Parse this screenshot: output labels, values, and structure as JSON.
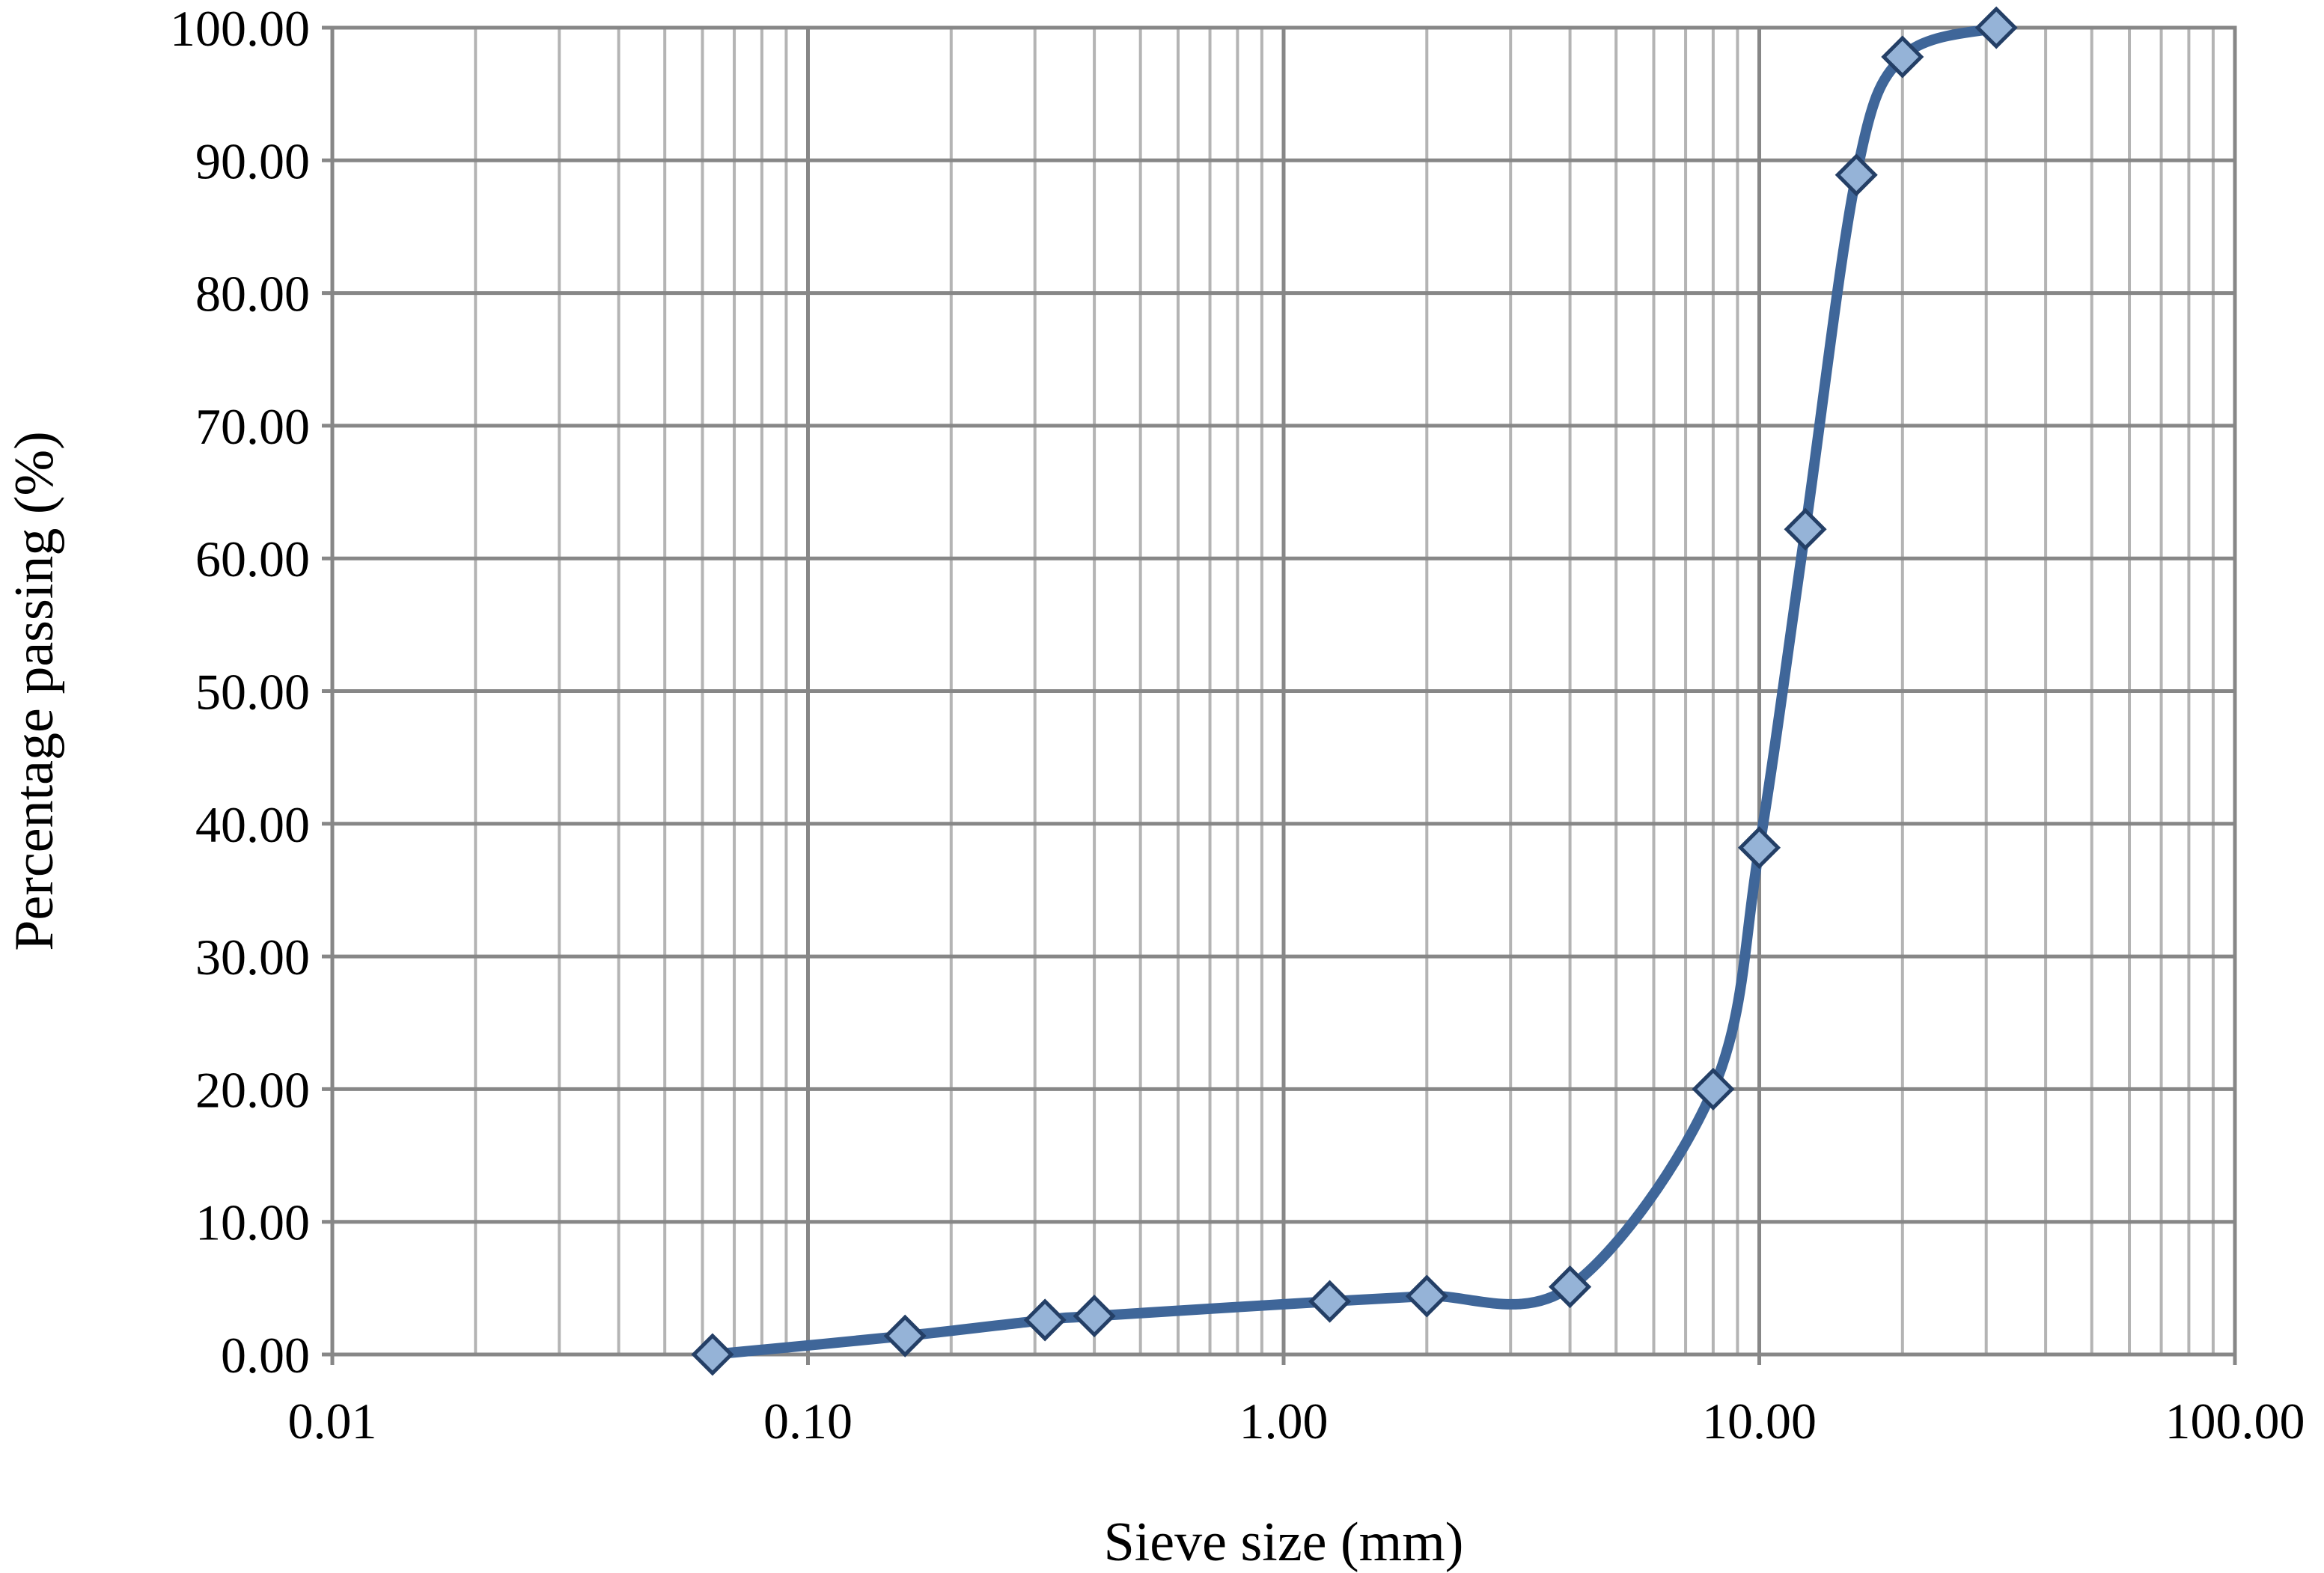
{
  "chart_data": {
    "type": "line",
    "title": "",
    "xlabel": "Sieve size (mm)",
    "ylabel": "Percentage passing (%)",
    "x_scale": "log",
    "xlim": [
      0.01,
      100
    ],
    "ylim": [
      0,
      100
    ],
    "x_ticks": [
      "0.01",
      "0.10",
      "1.00",
      "10.00",
      "100.00"
    ],
    "y_ticks": [
      "0.00",
      "10.00",
      "20.00",
      "30.00",
      "40.00",
      "50.00",
      "60.00",
      "70.00",
      "80.00",
      "90.00",
      "100.00"
    ],
    "grid": true,
    "legend": "none",
    "series": [
      {
        "x": [
          0.063,
          0.16,
          0.315,
          0.4,
          1.25,
          2.0,
          4.0,
          8.0,
          10.0,
          12.5,
          16.0,
          20.0,
          31.5
        ],
        "y": [
          0.0,
          1.4,
          2.6,
          2.9,
          4.0,
          4.4,
          5.1,
          20.0,
          38.2,
          62.2,
          88.9,
          97.8,
          100.0
        ]
      }
    ],
    "colors": {
      "line": "#3F6699",
      "marker_fill": "#95B3D7",
      "marker_stroke": "#243F66",
      "major_grid": "#878787",
      "minor_grid": "#B4B4B4"
    }
  }
}
